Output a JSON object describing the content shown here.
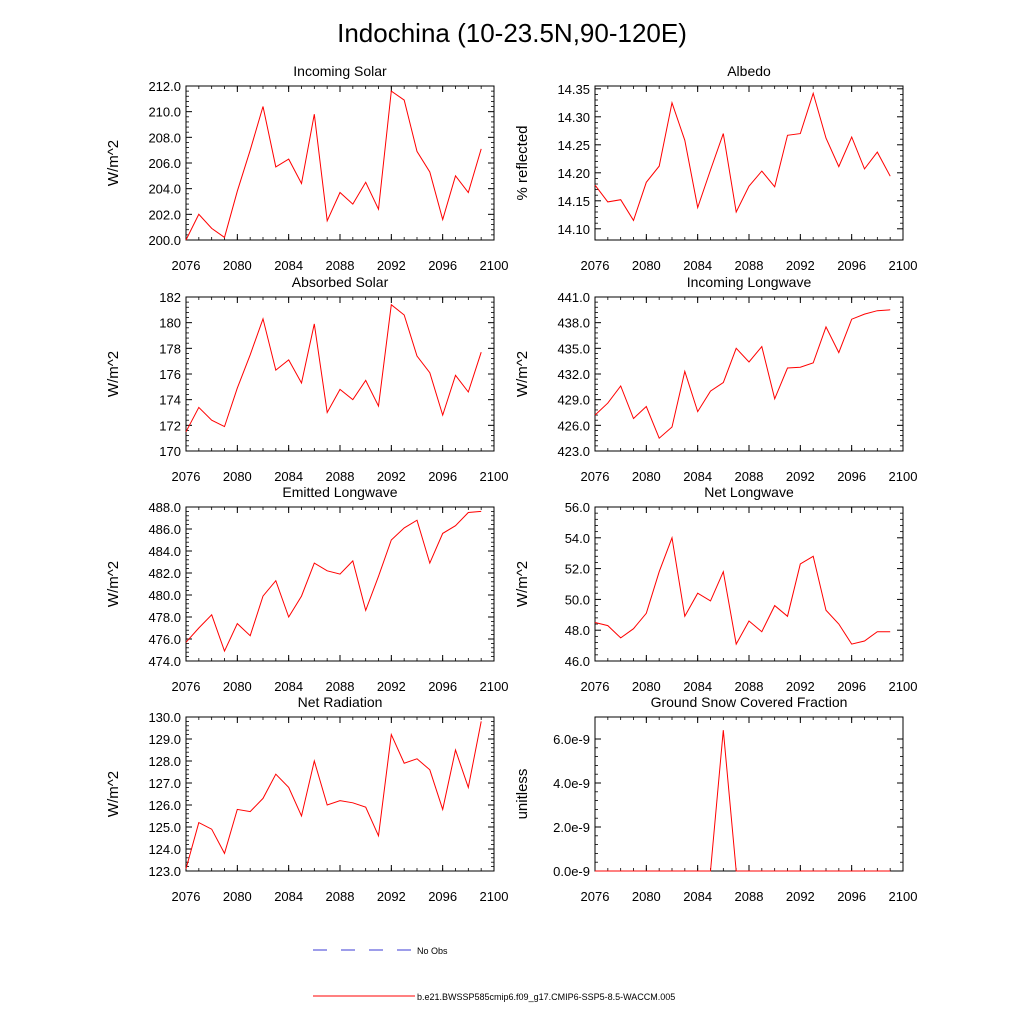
{
  "figure_title": "Indochina (10-23.5N,90-120E)",
  "colors": {
    "series": "#ff0000",
    "obs": "#3b3bd6",
    "axis": "#000000"
  },
  "legend": {
    "obs_label": "No Obs",
    "model_label": "b.e21.BWSSP585cmip6.f09_g17.CMIP6-SSP5-8.5-WACCM.005"
  },
  "chart_data": [
    {
      "type": "line",
      "title": "Incoming Solar",
      "ylabel": "W/m^2",
      "xlabel": "",
      "xlim": [
        2076,
        2100
      ],
      "ylim": [
        200,
        212
      ],
      "xticks": [
        2076,
        2080,
        2084,
        2088,
        2092,
        2096,
        2100
      ],
      "yticks": [
        200,
        202,
        204,
        206,
        208,
        210,
        212
      ],
      "yticklabels": [
        "200.0",
        "202.0",
        "204.0",
        "206.0",
        "208.0",
        "210.0",
        "212.0"
      ],
      "x": [
        2076,
        2077,
        2078,
        2079,
        2080,
        2081,
        2082,
        2083,
        2084,
        2085,
        2086,
        2087,
        2088,
        2089,
        2090,
        2091,
        2092,
        2093,
        2094,
        2095,
        2096,
        2097,
        2098,
        2099
      ],
      "series": [
        {
          "name": "b.e21.BWSSP585cmip6.f09_g17.CMIP6-SSP5-8.5-WACCM.005",
          "values": [
            200.0,
            202.0,
            200.9,
            200.2,
            203.8,
            207.0,
            210.4,
            205.7,
            206.3,
            204.4,
            209.8,
            201.5,
            203.7,
            202.8,
            204.5,
            202.4,
            211.6,
            210.9,
            206.9,
            205.3,
            201.6,
            205.0,
            203.7,
            207.1
          ]
        }
      ]
    },
    {
      "type": "line",
      "title": "Albedo",
      "ylabel": "% reflected",
      "xlabel": "",
      "xlim": [
        2076,
        2100
      ],
      "ylim": [
        14.08,
        14.355
      ],
      "xticks": [
        2076,
        2080,
        2084,
        2088,
        2092,
        2096,
        2100
      ],
      "yticks": [
        14.1,
        14.15,
        14.2,
        14.25,
        14.3,
        14.35
      ],
      "yticklabels": [
        "14.10",
        "14.15",
        "14.20",
        "14.25",
        "14.30",
        "14.35"
      ],
      "x": [
        2076,
        2077,
        2078,
        2079,
        2080,
        2081,
        2082,
        2083,
        2084,
        2085,
        2086,
        2087,
        2088,
        2089,
        2090,
        2091,
        2092,
        2093,
        2094,
        2095,
        2096,
        2097,
        2098,
        2099
      ],
      "series": [
        {
          "name": "b.e21.BWSSP585cmip6.f09_g17.CMIP6-SSP5-8.5-WACCM.005",
          "values": [
            14.178,
            14.148,
            14.152,
            14.115,
            14.183,
            14.212,
            14.325,
            14.258,
            14.138,
            14.205,
            14.27,
            14.13,
            14.176,
            14.203,
            14.175,
            14.267,
            14.27,
            14.342,
            14.262,
            14.211,
            14.264,
            14.207,
            14.237,
            14.194
          ]
        }
      ]
    },
    {
      "type": "line",
      "title": "Absorbed Solar",
      "ylabel": "W/m^2",
      "xlabel": "",
      "xlim": [
        2076,
        2100
      ],
      "ylim": [
        170,
        182
      ],
      "xticks": [
        2076,
        2080,
        2084,
        2088,
        2092,
        2096,
        2100
      ],
      "yticks": [
        170,
        172,
        174,
        176,
        178,
        180,
        182
      ],
      "yticklabels": [
        "170",
        "172",
        "174",
        "176",
        "178",
        "180",
        "182"
      ],
      "x": [
        2076,
        2077,
        2078,
        2079,
        2080,
        2081,
        2082,
        2083,
        2084,
        2085,
        2086,
        2087,
        2088,
        2089,
        2090,
        2091,
        2092,
        2093,
        2094,
        2095,
        2096,
        2097,
        2098,
        2099
      ],
      "series": [
        {
          "name": "b.e21.BWSSP585cmip6.f09_g17.CMIP6-SSP5-8.5-WACCM.005",
          "values": [
            171.5,
            173.4,
            172.4,
            171.9,
            174.9,
            177.5,
            180.3,
            176.3,
            177.1,
            175.3,
            179.9,
            173.0,
            174.8,
            174.0,
            175.5,
            173.5,
            181.4,
            180.6,
            177.4,
            176.1,
            172.8,
            175.9,
            174.6,
            177.7
          ]
        }
      ]
    },
    {
      "type": "line",
      "title": "Incoming Longwave",
      "ylabel": "W/m^2",
      "xlabel": "",
      "xlim": [
        2076,
        2100
      ],
      "ylim": [
        423,
        441
      ],
      "xticks": [
        2076,
        2080,
        2084,
        2088,
        2092,
        2096,
        2100
      ],
      "yticks": [
        423,
        426,
        429,
        432,
        435,
        438,
        441
      ],
      "yticklabels": [
        "423.0",
        "426.0",
        "429.0",
        "432.0",
        "435.0",
        "438.0",
        "441.0"
      ],
      "x": [
        2076,
        2077,
        2078,
        2079,
        2080,
        2081,
        2082,
        2083,
        2084,
        2085,
        2086,
        2087,
        2088,
        2089,
        2090,
        2091,
        2092,
        2093,
        2094,
        2095,
        2096,
        2097,
        2098,
        2099
      ],
      "series": [
        {
          "name": "b.e21.BWSSP585cmip6.f09_g17.CMIP6-SSP5-8.5-WACCM.005",
          "values": [
            427.2,
            428.6,
            430.6,
            426.8,
            428.2,
            424.5,
            425.8,
            432.3,
            427.6,
            430.0,
            431.0,
            435.0,
            433.4,
            435.2,
            429.1,
            432.7,
            432.8,
            433.3,
            437.5,
            434.5,
            438.4,
            439.0,
            439.4,
            439.5
          ]
        }
      ]
    },
    {
      "type": "line",
      "title": "Emitted Longwave",
      "ylabel": "W/m^2",
      "xlabel": "",
      "xlim": [
        2076,
        2100
      ],
      "ylim": [
        474,
        488
      ],
      "xticks": [
        2076,
        2080,
        2084,
        2088,
        2092,
        2096,
        2100
      ],
      "yticks": [
        474,
        476,
        478,
        480,
        482,
        484,
        486,
        488
      ],
      "yticklabels": [
        "474.0",
        "476.0",
        "478.0",
        "480.0",
        "482.0",
        "484.0",
        "486.0",
        "488.0"
      ],
      "x": [
        2076,
        2077,
        2078,
        2079,
        2080,
        2081,
        2082,
        2083,
        2084,
        2085,
        2086,
        2087,
        2088,
        2089,
        2090,
        2091,
        2092,
        2093,
        2094,
        2095,
        2096,
        2097,
        2098,
        2099
      ],
      "series": [
        {
          "name": "b.e21.BWSSP585cmip6.f09_g17.CMIP6-SSP5-8.5-WACCM.005",
          "values": [
            475.7,
            477.0,
            478.2,
            474.9,
            477.4,
            476.3,
            479.9,
            481.3,
            478.0,
            479.9,
            482.9,
            482.2,
            481.9,
            483.1,
            478.6,
            481.7,
            485.0,
            486.1,
            486.8,
            482.9,
            485.6,
            486.3,
            487.5,
            487.6
          ]
        }
      ]
    },
    {
      "type": "line",
      "title": "Net Longwave",
      "ylabel": "W/m^2",
      "xlabel": "",
      "xlim": [
        2076,
        2100
      ],
      "ylim": [
        46,
        56
      ],
      "xticks": [
        2076,
        2080,
        2084,
        2088,
        2092,
        2096,
        2100
      ],
      "yticks": [
        46,
        48,
        50,
        52,
        54,
        56
      ],
      "yticklabels": [
        "46.0",
        "48.0",
        "50.0",
        "52.0",
        "54.0",
        "56.0"
      ],
      "x": [
        2076,
        2077,
        2078,
        2079,
        2080,
        2081,
        2082,
        2083,
        2084,
        2085,
        2086,
        2087,
        2088,
        2089,
        2090,
        2091,
        2092,
        2093,
        2094,
        2095,
        2096,
        2097,
        2098,
        2099
      ],
      "series": [
        {
          "name": "b.e21.BWSSP585cmip6.f09_g17.CMIP6-SSP5-8.5-WACCM.005",
          "values": [
            48.5,
            48.3,
            47.5,
            48.1,
            49.1,
            51.8,
            54.0,
            48.9,
            50.4,
            49.9,
            51.8,
            47.1,
            48.6,
            47.9,
            49.6,
            48.9,
            52.3,
            52.8,
            49.3,
            48.4,
            47.1,
            47.3,
            47.9,
            47.9
          ]
        }
      ]
    },
    {
      "type": "line",
      "title": "Net Radiation",
      "ylabel": "W/m^2",
      "xlabel": "",
      "xlim": [
        2076,
        2100
      ],
      "ylim": [
        123,
        130
      ],
      "xticks": [
        2076,
        2080,
        2084,
        2088,
        2092,
        2096,
        2100
      ],
      "yticks": [
        123,
        124,
        125,
        126,
        127,
        128,
        129,
        130
      ],
      "yticklabels": [
        "123.0",
        "124.0",
        "125.0",
        "126.0",
        "127.0",
        "128.0",
        "129.0",
        "130.0"
      ],
      "x": [
        2076,
        2077,
        2078,
        2079,
        2080,
        2081,
        2082,
        2083,
        2084,
        2085,
        2086,
        2087,
        2088,
        2089,
        2090,
        2091,
        2092,
        2093,
        2094,
        2095,
        2096,
        2097,
        2098,
        2099
      ],
      "series": [
        {
          "name": "b.e21.BWSSP585cmip6.f09_g17.CMIP6-SSP5-8.5-WACCM.005",
          "values": [
            123.1,
            125.2,
            124.9,
            123.8,
            125.8,
            125.7,
            126.3,
            127.4,
            126.8,
            125.5,
            128.0,
            126.0,
            126.2,
            126.1,
            125.9,
            124.6,
            129.2,
            127.9,
            128.1,
            127.6,
            125.8,
            128.5,
            126.8,
            129.8
          ]
        }
      ]
    },
    {
      "type": "line",
      "title": "Ground Snow Covered Fraction",
      "ylabel": "unitless",
      "xlabel": "",
      "xlim": [
        2076,
        2100
      ],
      "ylim": [
        0,
        7e-09
      ],
      "xticks": [
        2076,
        2080,
        2084,
        2088,
        2092,
        2096,
        2100
      ],
      "yticks": [
        0,
        2e-09,
        4e-09,
        6e-09
      ],
      "yticklabels": [
        "0.0e-9",
        "2.0e-9",
        "4.0e-9",
        "6.0e-9"
      ],
      "x": [
        2076,
        2077,
        2078,
        2079,
        2080,
        2081,
        2082,
        2083,
        2084,
        2085,
        2086,
        2087,
        2088,
        2089,
        2090,
        2091,
        2092,
        2093,
        2094,
        2095,
        2096,
        2097,
        2098,
        2099
      ],
      "series": [
        {
          "name": "b.e21.BWSSP585cmip6.f09_g17.CMIP6-SSP5-8.5-WACCM.005",
          "values": [
            0,
            0,
            0,
            0,
            0,
            0,
            0,
            0,
            0,
            0,
            6.4e-09,
            0,
            0,
            0,
            0,
            0,
            0,
            0,
            0,
            0,
            0,
            0,
            0,
            0
          ]
        }
      ]
    }
  ]
}
